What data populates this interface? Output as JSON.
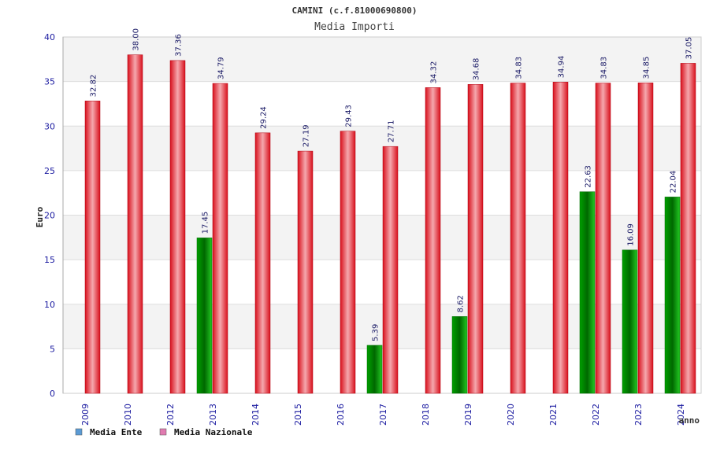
{
  "chart_data": {
    "type": "bar",
    "title": "CAMINI (c.f.81000690800)",
    "subtitle": "Media Importi",
    "xlabel": "anno",
    "ylabel": "Euro",
    "ylim": [
      0,
      40
    ],
    "yticks": [
      0,
      5,
      10,
      15,
      20,
      25,
      30,
      35,
      40
    ],
    "categories": [
      "2009",
      "2010",
      "2012",
      "2013",
      "2014",
      "2015",
      "2016",
      "2017",
      "2018",
      "2019",
      "2020",
      "2021",
      "2022",
      "2023",
      "2024"
    ],
    "series": [
      {
        "name": "Media Ente",
        "color": "#00aa00",
        "values": [
          null,
          null,
          null,
          17.45,
          null,
          null,
          null,
          5.39,
          null,
          8.62,
          null,
          null,
          22.63,
          16.09,
          22.04
        ],
        "labels": [
          null,
          null,
          null,
          "17.45",
          null,
          null,
          null,
          "5.39",
          null,
          "8.62",
          null,
          null,
          "22.63",
          "16.09",
          "22.04"
        ]
      },
      {
        "name": "Media Nazionale",
        "color": "#e8202a",
        "values": [
          32.82,
          38.0,
          37.36,
          34.79,
          29.24,
          27.19,
          29.43,
          27.71,
          34.32,
          34.68,
          34.83,
          34.94,
          34.83,
          34.85,
          37.05
        ],
        "labels": [
          "32.82",
          "38.00",
          "37.36",
          "34.79",
          "29.24",
          "27.19",
          "29.43",
          "27.71",
          "34.32",
          "34.68",
          "34.83",
          "34.94",
          "34.83",
          "34.85",
          "37.05"
        ]
      }
    ],
    "legend": [
      {
        "label": "Media Ente",
        "color": "#5b9bd5"
      },
      {
        "label": "Media Nazionale",
        "color": "#e07bb0"
      }
    ]
  }
}
